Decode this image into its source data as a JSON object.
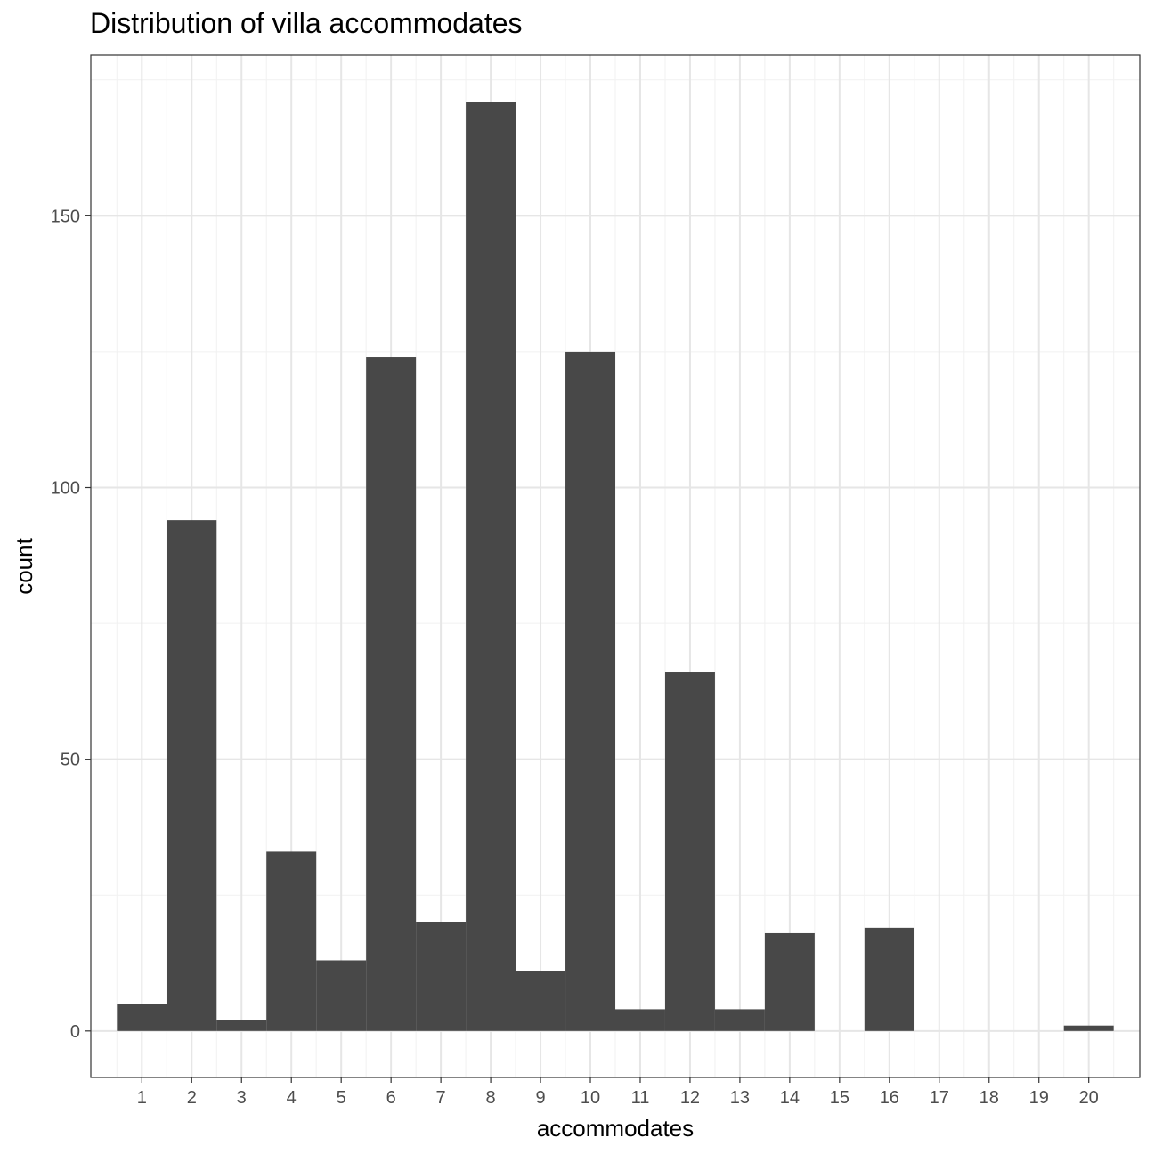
{
  "chart_data": {
    "type": "bar",
    "title": "Distribution of villa accommodates",
    "xlabel": "accommodates",
    "ylabel": "count",
    "categories": [
      1,
      2,
      3,
      4,
      5,
      6,
      7,
      8,
      9,
      10,
      11,
      12,
      13,
      14,
      15,
      16,
      17,
      18,
      19,
      20
    ],
    "values": [
      5,
      94,
      2,
      33,
      13,
      124,
      20,
      171,
      11,
      125,
      4,
      66,
      4,
      18,
      0,
      19,
      0,
      0,
      0,
      1
    ],
    "xlim": [
      -0.024,
      21.024
    ],
    "ylim": [
      -8.55,
      179.55
    ],
    "yticks": [
      0,
      50,
      100,
      150
    ],
    "bar_width": 1,
    "grid": true,
    "legend": "none",
    "colors": {
      "bar": "#484848",
      "grid_major": "#e6e6e6",
      "grid_minor": "#f1f1f1",
      "panel_border": "#333333",
      "tick_label": "#4d4d4d"
    }
  }
}
